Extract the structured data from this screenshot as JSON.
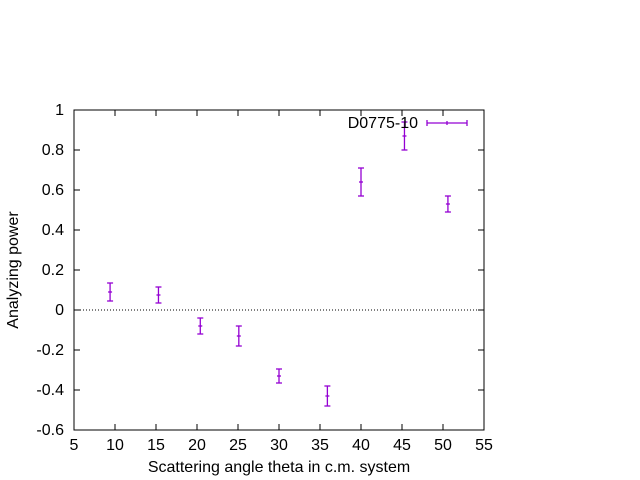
{
  "chart_data": {
    "type": "scatter",
    "title": "",
    "xlabel": "Scattering angle theta in c.m. system",
    "ylabel": "Analyzing power",
    "xlim": [
      5,
      55
    ],
    "ylim": [
      -0.6,
      1
    ],
    "xticks": [
      5,
      10,
      15,
      20,
      25,
      30,
      35,
      40,
      45,
      50,
      55
    ],
    "yticks": [
      -0.6,
      -0.4,
      -0.2,
      0,
      0.2,
      0.4,
      0.6,
      0.8,
      1
    ],
    "xtick_labels": [
      "5",
      "10",
      "15",
      "20",
      "25",
      "30",
      "35",
      "40",
      "45",
      "50",
      "55"
    ],
    "ytick_labels": [
      "-0.6",
      "-0.4",
      "-0.2",
      "0",
      "0.2",
      "0.4",
      "0.6",
      "0.8",
      "1"
    ],
    "grid": false,
    "zero_line": true,
    "legend_position": "top-right",
    "series": [
      {
        "name": "D0775-10",
        "color": "#9400d3",
        "points": [
          {
            "x": 9.4,
            "y": 0.09,
            "err": 0.045
          },
          {
            "x": 15.3,
            "y": 0.075,
            "err": 0.04
          },
          {
            "x": 20.4,
            "y": -0.08,
            "err": 0.04
          },
          {
            "x": 25.1,
            "y": -0.13,
            "err": 0.05
          },
          {
            "x": 30.0,
            "y": -0.33,
            "err": 0.035
          },
          {
            "x": 35.9,
            "y": -0.43,
            "err": 0.05
          },
          {
            "x": 40.0,
            "y": 0.64,
            "err": 0.07
          },
          {
            "x": 45.3,
            "y": 0.87,
            "err": 0.07
          },
          {
            "x": 50.6,
            "y": 0.53,
            "err": 0.04
          }
        ]
      }
    ]
  }
}
